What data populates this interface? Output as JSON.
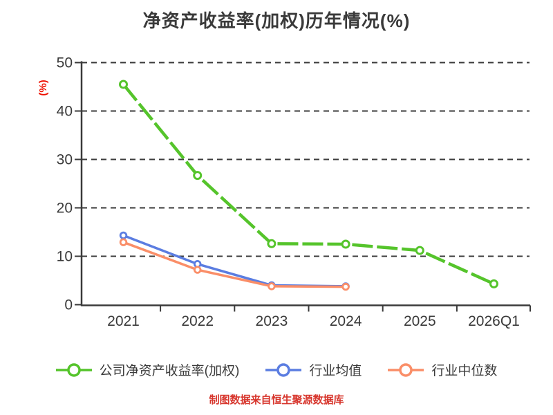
{
  "title": "净资产收益率(加权)历年情况(%)",
  "footer": {
    "text": "制图数据来自恒生聚源数据库",
    "color": "#d7352c"
  },
  "chart_data": {
    "type": "line",
    "title": "净资产收益率(加权)历年情况(%)",
    "categories": [
      "2021",
      "2022",
      "2023",
      "2024",
      "2025",
      "2026Q1"
    ],
    "series": [
      {
        "id": "company-roe",
        "name": "公司净资产收益率(加权)",
        "color": "#55c42b",
        "line_style": "dashed",
        "values": [
          45.5,
          26.7,
          12.6,
          12.5,
          11.2,
          4.3
        ]
      },
      {
        "id": "industry-mean",
        "name": "行业均值",
        "color": "#5b7de1",
        "line_style": "solid",
        "values": [
          14.3,
          8.4,
          4.0,
          3.8,
          null,
          null
        ]
      },
      {
        "id": "industry-median",
        "name": "行业中位数",
        "color": "#fa8e68",
        "line_style": "solid",
        "values": [
          12.9,
          7.2,
          3.8,
          3.7,
          null,
          null
        ]
      }
    ],
    "xlabel": "",
    "ylabel": "(%)",
    "ylabel_color": "#ee1100",
    "yticks": [
      0,
      10,
      20,
      30,
      40,
      50
    ],
    "ylim": [
      0,
      50
    ],
    "grid": "horizontal-dashed",
    "grid_color": "#3a3a3a",
    "axis_color": "#3a3a3a",
    "text_color": "#3a3a3a",
    "legend_position": "bottom",
    "marker": "open-circle-white-fill"
  }
}
